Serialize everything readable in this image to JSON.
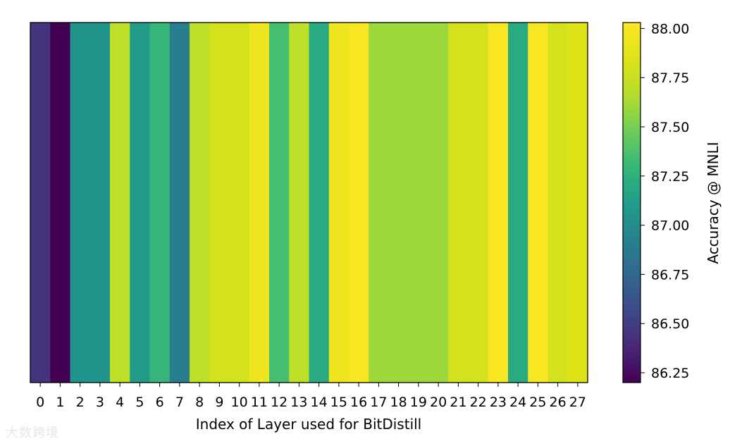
{
  "chart_data": {
    "type": "heatmap",
    "xlabel": "Index of Layer used for BitDistill",
    "colorbar_label": "Accuracy @ MNLI",
    "colormap": "viridis",
    "color_range": [
      86.2,
      88.03
    ],
    "colorbar_ticks": [
      "86.25",
      "86.50",
      "86.75",
      "87.00",
      "87.25",
      "87.50",
      "87.75",
      "88.00"
    ],
    "categories": [
      "0",
      "1",
      "2",
      "3",
      "4",
      "5",
      "6",
      "7",
      "8",
      "9",
      "10",
      "11",
      "12",
      "13",
      "14",
      "15",
      "16",
      "17",
      "18",
      "19",
      "20",
      "21",
      "22",
      "23",
      "24",
      "25",
      "26",
      "27"
    ],
    "values": [
      86.45,
      86.2,
      87.05,
      87.05,
      87.7,
      87.1,
      87.3,
      86.9,
      87.7,
      87.8,
      87.8,
      87.95,
      87.35,
      87.7,
      87.2,
      87.95,
      88.0,
      87.6,
      87.6,
      87.6,
      87.6,
      87.8,
      87.8,
      88.0,
      87.2,
      88.0,
      87.8,
      87.85
    ]
  },
  "watermark": "大数跨境"
}
